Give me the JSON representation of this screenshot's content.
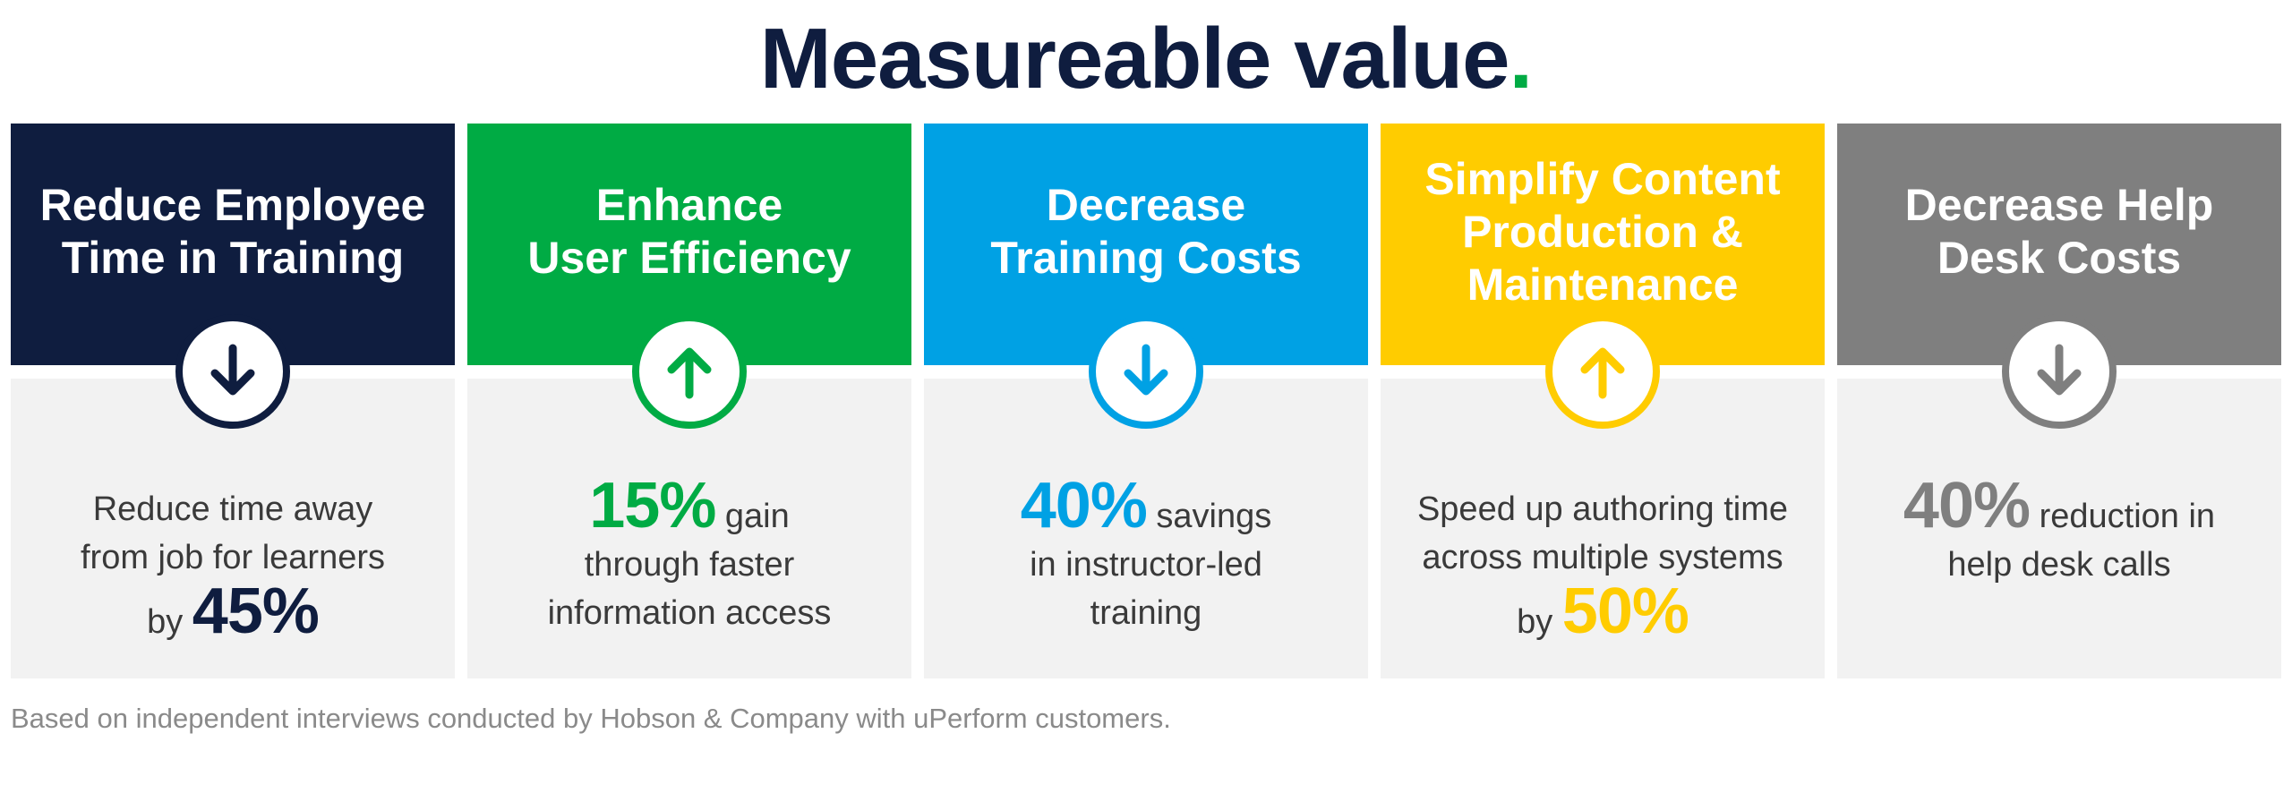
{
  "title": {
    "text": "Measureable value",
    "dot": "."
  },
  "cards": [
    {
      "title": "Reduce Employee\nTime in Training",
      "color": "#0f1d3f",
      "icon": "arrow-down-icon",
      "lines": [
        "Reduce time away",
        "from job for learners"
      ],
      "prefix": "by",
      "stat": "45%",
      "suffix": ""
    },
    {
      "title": "Enhance\nUser Efficiency",
      "color": "#00ab44",
      "icon": "arrow-up-icon",
      "stat": "15%",
      "suffix": "gain",
      "lines": [
        "through faster",
        "information access"
      ]
    },
    {
      "title": "Decrease\nTraining Costs",
      "color": "#00a1e4",
      "icon": "arrow-down-icon",
      "stat": "40%",
      "suffix": "savings",
      "lines": [
        "in instructor-led",
        "training"
      ]
    },
    {
      "title": "Simplify Content\nProduction &\nMaintenance",
      "color": "#ffcc00",
      "icon": "arrow-up-icon",
      "lines": [
        "Speed up authoring time",
        "across multiple systems"
      ],
      "prefix": "by",
      "stat": "50%",
      "suffix": ""
    },
    {
      "title": "Decrease Help\nDesk Costs",
      "color": "#7f7f7f",
      "icon": "arrow-down-icon",
      "stat": "40%",
      "suffix": "reduction in",
      "lines": [
        "help desk calls"
      ]
    }
  ],
  "footnote": "Based on independent interviews conducted by Hobson & Company with uPerform customers."
}
